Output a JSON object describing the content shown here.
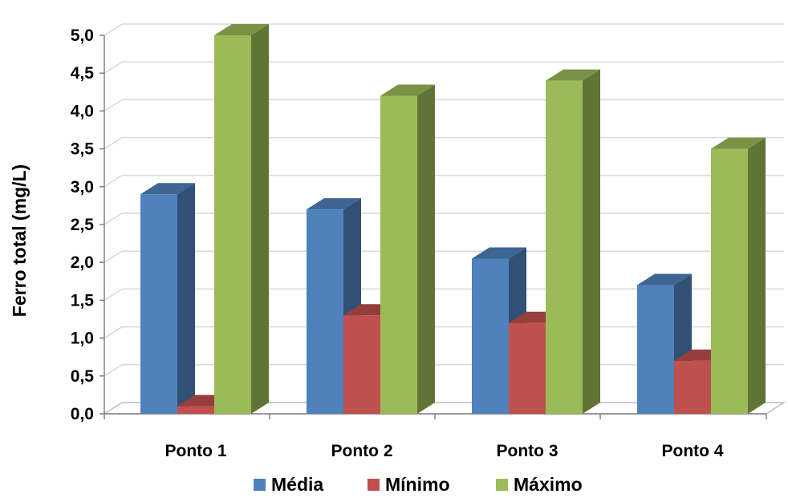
{
  "chart_data": {
    "type": "bar",
    "subtype": "3d-clustered-column",
    "categories": [
      "Ponto 1",
      "Ponto 2",
      "Ponto 3",
      "Ponto 4"
    ],
    "series": [
      {
        "name": "Média",
        "values": [
          2.9,
          2.7,
          2.05,
          1.7
        ],
        "color": "#4f81bd"
      },
      {
        "name": "Mínimo",
        "values": [
          0.1,
          1.3,
          1.2,
          0.7
        ],
        "color": "#c0504d"
      },
      {
        "name": "Máximo",
        "values": [
          5.0,
          4.2,
          4.4,
          3.5
        ],
        "color": "#9bbb59"
      }
    ],
    "title": "",
    "xlabel": "",
    "ylabel": "Ferro total (mg/L)",
    "ylim": [
      0,
      5.0
    ],
    "yticks": [
      "0,0",
      "0,5",
      "1,0",
      "1,5",
      "2,0",
      "2,5",
      "3,0",
      "3,5",
      "4,0",
      "4,5",
      "5,0"
    ],
    "grid": true,
    "legend_position": "bottom"
  }
}
